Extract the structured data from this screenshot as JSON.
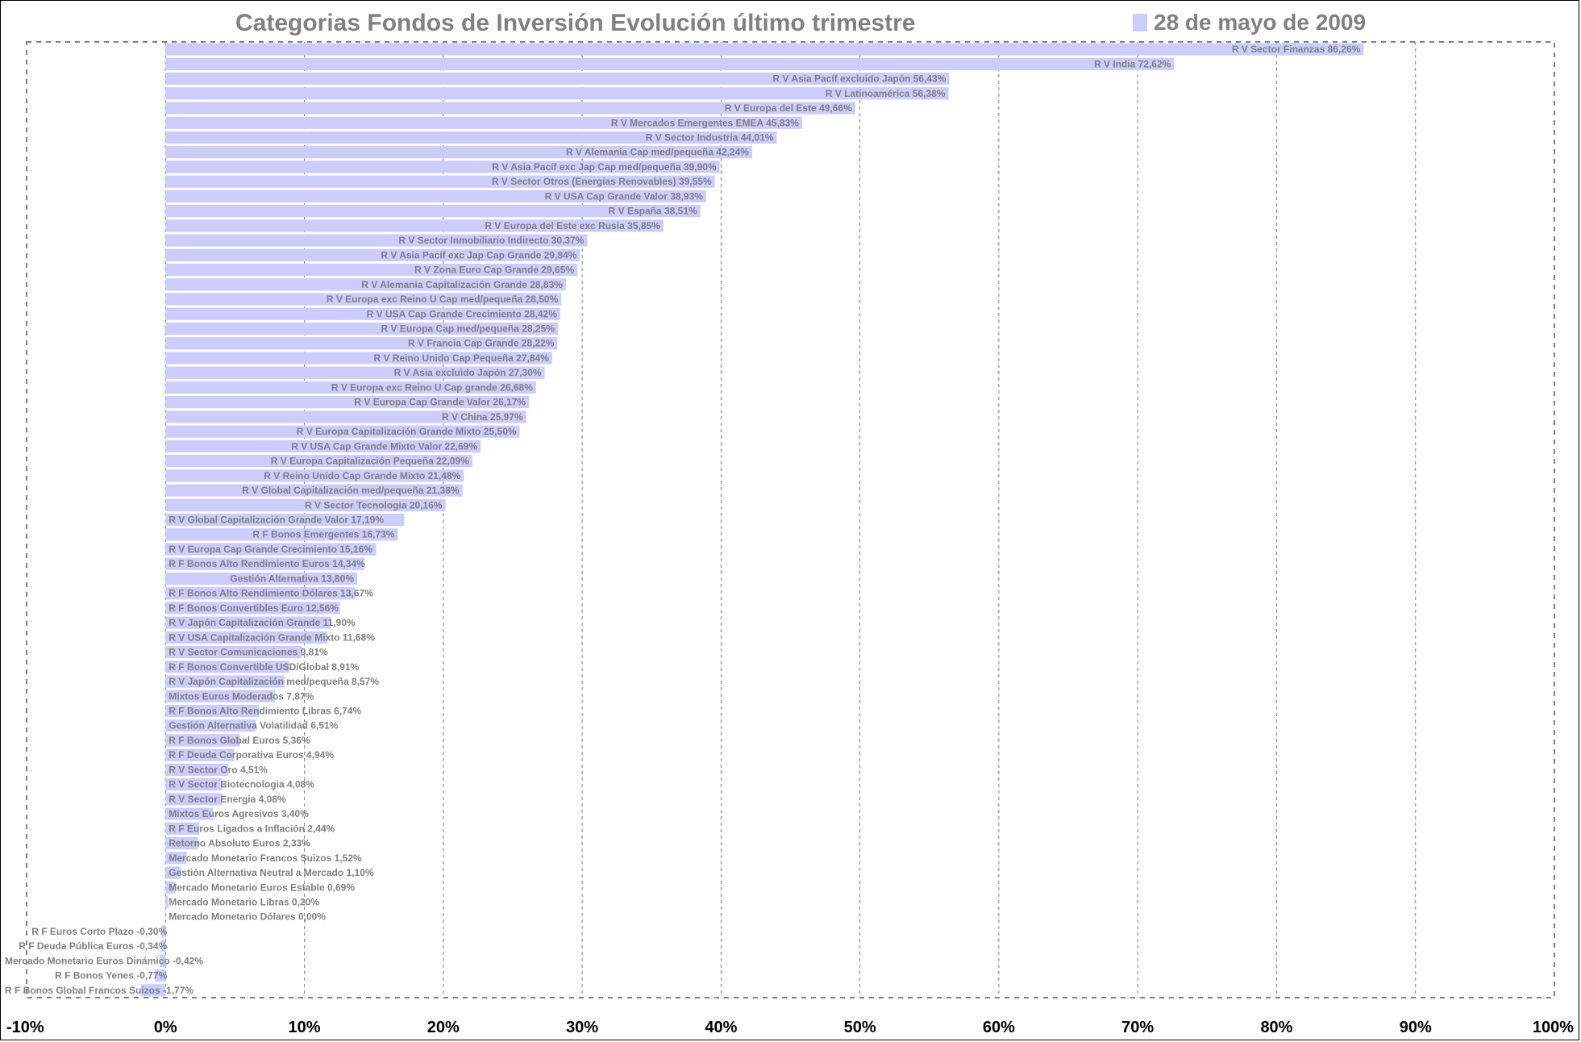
{
  "chart_data": {
    "type": "bar",
    "orientation": "horizontal",
    "title": "Categorias Fondos de Inversión Evolución último trimestre",
    "legend": {
      "label": "28 de mayo de 2009",
      "color": "#ccccff",
      "position": "top-right"
    },
    "xlabel": "",
    "ylabel": "",
    "xlim": [
      -10,
      100
    ],
    "x_ticks": [
      "-10%",
      "0%",
      "10%",
      "20%",
      "30%",
      "40%",
      "50%",
      "60%",
      "70%",
      "80%",
      "90%",
      "100%"
    ],
    "grid": "vertical dashed",
    "bar_color": "#ccccff",
    "series": [
      {
        "name": "28 de mayo de 2009",
        "points": [
          {
            "label": "R V Sector Finanzas 86,26%",
            "value": 86.26
          },
          {
            "label": "R V India 72,62%",
            "value": 72.62
          },
          {
            "label": "R V Asia Pacíf excluido Japón 56,43%",
            "value": 56.43
          },
          {
            "label": "R V Latinoamérica 56,38%",
            "value": 56.38
          },
          {
            "label": "R V Europa del Este 49,66%",
            "value": 49.66
          },
          {
            "label": "R V Mercados Emergentes EMEA 45,83%",
            "value": 45.83
          },
          {
            "label": "R V Sector Industria 44,01%",
            "value": 44.01
          },
          {
            "label": "R V Alemania Cap med/pequeña 42,24%",
            "value": 42.24
          },
          {
            "label": "R V Asia Pacíf exc Jap Cap med/pequeña 39,90%",
            "value": 39.9
          },
          {
            "label": "R V Sector Otros (Energias Renovables) 39,55%",
            "value": 39.55
          },
          {
            "label": "R V USA Cap Grande Valor 38,93%",
            "value": 38.93
          },
          {
            "label": "R V España 38,51%",
            "value": 38.51
          },
          {
            "label": "R V Europa del Este exc Rusia 35,85%",
            "value": 35.85
          },
          {
            "label": "R V Sector Inmobiliario Indirecto 30,37%",
            "value": 30.37
          },
          {
            "label": "R V Asia Pacíf exc Jap Cap Grande 29,84%",
            "value": 29.84
          },
          {
            "label": "R V Zona Euro Cap Grande 29,65%",
            "value": 29.65
          },
          {
            "label": "R V Alemania Capitalización Grande 28,83%",
            "value": 28.83
          },
          {
            "label": "R V Europa exc Reino U Cap med/pequeña 28,50%",
            "value": 28.5
          },
          {
            "label": "R V USA Cap Grande Crecimiento 28,42%",
            "value": 28.42
          },
          {
            "label": "R V Europa Cap med/pequeña 28,25%",
            "value": 28.25
          },
          {
            "label": "R V Francia Cap Grande 28,22%",
            "value": 28.22
          },
          {
            "label": "R V Reino Unido Cap Pequeña 27,84%",
            "value": 27.84
          },
          {
            "label": "R V Asia excluido Japón 27,30%",
            "value": 27.3
          },
          {
            "label": "R V Europa exc Reino U Cap grande 26,68%",
            "value": 26.68
          },
          {
            "label": "R V Europa Cap Grande Valor 26,17%",
            "value": 26.17
          },
          {
            "label": "R V China 25,97%",
            "value": 25.97
          },
          {
            "label": "R V Europa Capitalización Grande Mixto 25,50%",
            "value": 25.5
          },
          {
            "label": "R V USA Cap Grande Mixto Valor 22,69%",
            "value": 22.69
          },
          {
            "label": "R V Europa Capitalización Pequeña 22,09%",
            "value": 22.09
          },
          {
            "label": "R V Reino Unido Cap Grande Mixto 21,48%",
            "value": 21.48
          },
          {
            "label": "R V Global Capitalización med/pequeña 21,38%",
            "value": 21.38
          },
          {
            "label": "R V Sector Tecnologia 20,16%",
            "value": 20.16
          },
          {
            "label": "R V Global Capitalización Grande Valor 17,19%",
            "value": 17.19
          },
          {
            "label": "R F Bonos Emergentes 16,73%",
            "value": 16.73
          },
          {
            "label": "R V Europa Cap Grande Crecimiento 15,16%",
            "value": 15.16
          },
          {
            "label": "R F Bonos Alto Rendimiento Euros 14,34%",
            "value": 14.34
          },
          {
            "label": "Gestión Alternativa 13,80%",
            "value": 13.8
          },
          {
            "label": "R F Bonos Alto Rendimiento Dólares 13,67%",
            "value": 13.67
          },
          {
            "label": "R F Bonos Convertibles Euro 12,56%",
            "value": 12.56
          },
          {
            "label": "R V Japón Capitalización Grande 11,90%",
            "value": 11.9
          },
          {
            "label": "R V USA Capitalización Grande Mixto 11,68%",
            "value": 11.68
          },
          {
            "label": "R V Sector Comunicaciones 9,81%",
            "value": 9.81
          },
          {
            "label": "R F Bonos Convertible USD/Global 8,91%",
            "value": 8.91
          },
          {
            "label": "R V Japón Capitalización med/pequeña 8,57%",
            "value": 8.57
          },
          {
            "label": "Mixtos Euros Moderados 7,87%",
            "value": 7.87
          },
          {
            "label": "R F Bonos Alto Rendimiento Libras 6,74%",
            "value": 6.74
          },
          {
            "label": "Gestión Alternativa Volatilidad 6,51%",
            "value": 6.51
          },
          {
            "label": "R F Bonos Global Euros 5,36%",
            "value": 5.36
          },
          {
            "label": "R F Deuda Corporativa Euros 4,94%",
            "value": 4.94
          },
          {
            "label": "R V Sector Oro 4,51%",
            "value": 4.51
          },
          {
            "label": "R V Sector Biotecnologia 4,08%",
            "value": 4.08
          },
          {
            "label": "R V Sector Energia 4,08%",
            "value": 4.08
          },
          {
            "label": "Mixtos Euros Agresivos 3,40%",
            "value": 3.4
          },
          {
            "label": "R F Euros Ligados a Inflación 2,44%",
            "value": 2.44
          },
          {
            "label": "Retorno Absoluto Euros 2,33%",
            "value": 2.33
          },
          {
            "label": "Mercado Monetario Francos Suizos 1,52%",
            "value": 1.52
          },
          {
            "label": "Gestión Alternativa Neutral a Mercado 1,10%",
            "value": 1.1
          },
          {
            "label": "Mercado Monetario Euros Estable 0,69%",
            "value": 0.69
          },
          {
            "label": "Mercado Monetario Libras 0,20%",
            "value": 0.2
          },
          {
            "label": "Mercado Monetario Dólares 0,00%",
            "value": 0.0
          },
          {
            "label": "R F Euros Corto Plazo -0,30%",
            "value": -0.3
          },
          {
            "label": "R F Deuda Pública Euros -0,34%",
            "value": -0.34
          },
          {
            "label": "Mercado Monetario Euros Dinámico -0,42%",
            "value": -0.42
          },
          {
            "label": "R F Bonos Yenes -0,77%",
            "value": -0.77
          },
          {
            "label": "R F Bonos Global Francos Suizos -1,77%",
            "value": -1.77
          }
        ]
      }
    ]
  }
}
